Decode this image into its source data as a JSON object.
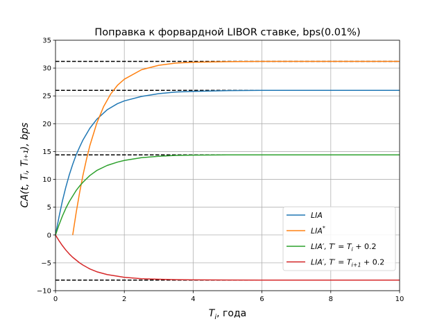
{
  "chart_data": {
    "type": "line",
    "title": "Поправка к форвардной LIBOR ставке, bps(0.01%)",
    "xlabel_main": "T",
    "xlabel_sub": "i",
    "xlabel_rest": ", года",
    "ylabel": "CA(t, Tᵢ, Tᵢ₊₁), bps",
    "xlim": [
      0,
      10
    ],
    "ylim": [
      -10,
      35
    ],
    "xticks": [
      0,
      2,
      4,
      6,
      8,
      10
    ],
    "yticks": [
      -10,
      -5,
      0,
      5,
      10,
      15,
      20,
      25,
      30,
      35
    ],
    "ytick_labels": [
      "−10",
      "−5",
      "0",
      "5",
      "10",
      "15",
      "20",
      "25",
      "30",
      "35"
    ],
    "grid": true,
    "legend_position": "lower-right",
    "asymptotes": [
      31.2,
      26.0,
      14.4,
      -8.1
    ],
    "series": [
      {
        "name": "LIA",
        "color": "#1f77b4",
        "x": [
          0,
          0.1,
          0.2,
          0.3,
          0.4,
          0.5,
          0.6,
          0.7,
          0.8,
          1.0,
          1.2,
          1.5,
          1.8,
          2.0,
          2.5,
          3.0,
          3.5,
          4.0,
          5.0,
          6.0,
          8.0,
          10.0
        ],
        "y": [
          0,
          3.2,
          6.1,
          8.6,
          10.8,
          12.7,
          14.4,
          15.8,
          17.1,
          19.2,
          20.8,
          22.5,
          23.6,
          24.1,
          24.9,
          25.4,
          25.7,
          25.8,
          25.95,
          26.0,
          26.0,
          26.0
        ]
      },
      {
        "name": "LIA*",
        "color": "#ff7f0e",
        "x": [
          0.5,
          0.6,
          0.7,
          0.8,
          0.9,
          1.0,
          1.2,
          1.4,
          1.6,
          1.8,
          2.0,
          2.5,
          3.0,
          3.5,
          4.0,
          5.0,
          6.0,
          8.0,
          10.0
        ],
        "y": [
          0,
          4.0,
          7.6,
          10.8,
          13.6,
          16.1,
          20.1,
          23.1,
          25.3,
          26.9,
          28.0,
          29.7,
          30.5,
          30.9,
          31.05,
          31.15,
          31.2,
          31.2,
          31.2
        ]
      },
      {
        "name": "LIA', T' = Tᵢ + 0.2",
        "color": "#2ca02c",
        "x": [
          0,
          0.1,
          0.2,
          0.3,
          0.4,
          0.5,
          0.6,
          0.7,
          0.8,
          1.0,
          1.2,
          1.5,
          1.8,
          2.0,
          2.5,
          3.0,
          3.5,
          4.0,
          5.0,
          6.0,
          8.0,
          10.0
        ],
        "y": [
          0,
          1.8,
          3.4,
          4.8,
          6.0,
          7.0,
          8.0,
          8.8,
          9.5,
          10.7,
          11.6,
          12.5,
          13.1,
          13.4,
          13.9,
          14.15,
          14.3,
          14.35,
          14.4,
          14.4,
          14.4,
          14.4
        ]
      },
      {
        "name": "LIA', T' = Tᵢ₊₁ + 0.2",
        "color": "#d62728",
        "x": [
          0,
          0.1,
          0.2,
          0.3,
          0.4,
          0.5,
          0.6,
          0.7,
          0.8,
          1.0,
          1.2,
          1.5,
          1.8,
          2.0,
          2.5,
          3.0,
          3.5,
          4.0,
          5.0,
          6.0,
          8.0,
          10.0
        ],
        "y": [
          0,
          -1.0,
          -1.9,
          -2.7,
          -3.4,
          -4.0,
          -4.5,
          -5.0,
          -5.4,
          -6.1,
          -6.6,
          -7.1,
          -7.4,
          -7.6,
          -7.85,
          -7.95,
          -8.02,
          -8.05,
          -8.08,
          -8.1,
          -8.1,
          -8.1
        ]
      }
    ],
    "legend": [
      {
        "main": "LIA",
        "sup": "",
        "rest": ""
      },
      {
        "main": "LIA",
        "sup": "*",
        "rest": ""
      },
      {
        "main": "LIA′, T′ = T",
        "sub": "i",
        "rest": " + 0.2"
      },
      {
        "main": "LIA′, T′ = T",
        "sub": "i+1",
        "rest": " + 0.2"
      }
    ]
  }
}
